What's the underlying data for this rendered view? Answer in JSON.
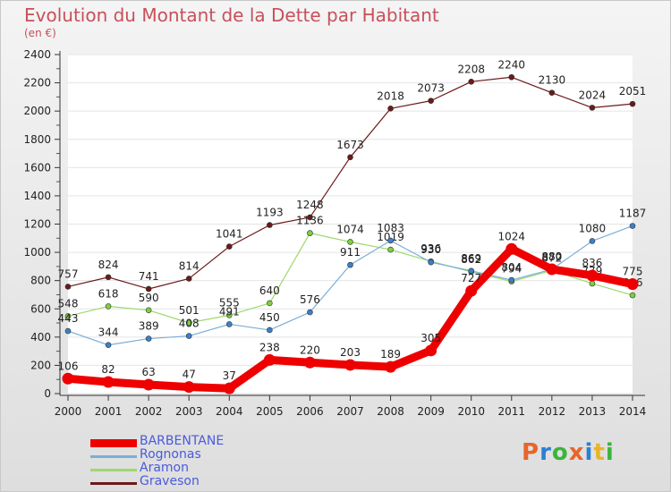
{
  "title": "Evolution du Montant de la Dette par Habitant",
  "subtitle": "(en €)",
  "logo": {
    "text": "Proxiti",
    "colors": [
      "#e8652a",
      "#2a7fd6",
      "#3ab53a",
      "#e8652a",
      "#2a7fd6",
      "#e8b52a",
      "#3ab53a"
    ]
  },
  "chart_data": {
    "type": "line",
    "x": [
      "2000",
      "2001",
      "2002",
      "2003",
      "2004",
      "2005",
      "2006",
      "2007",
      "2008",
      "2009",
      "2010",
      "2011",
      "2012",
      "2013",
      "2014"
    ],
    "ylim": [
      0,
      2400
    ],
    "yticks": [
      0,
      200,
      400,
      600,
      800,
      1000,
      1200,
      1400,
      1600,
      1800,
      2000,
      2200,
      2400
    ],
    "grid": "horizontal",
    "legend_position": "bottom-left",
    "series": [
      {
        "name": "Graveson",
        "color": "#6b1a1a",
        "marker": "#6b1a1a",
        "width": 1.2,
        "values": [
          757,
          824,
          741,
          814,
          1041,
          1193,
          1248,
          1673,
          2018,
          2073,
          2208,
          2240,
          2130,
          2024,
          2051
        ],
        "labels": [
          "757",
          "824",
          "741",
          "814",
          "1041",
          "1193",
          "1248",
          "1673",
          "2018",
          "2073",
          "2208",
          "2240",
          "2130",
          "2024",
          "2051"
        ]
      },
      {
        "name": "Aramon",
        "color": "#9ed870",
        "marker": "#7cd03c",
        "width": 1.2,
        "values": [
          548,
          618,
          590,
          501,
          555,
          640,
          1136,
          1074,
          1019,
          936,
          862,
          794,
          872,
          779,
          696
        ],
        "labels": [
          "548",
          "618",
          "590",
          "501",
          "555",
          "640",
          "1136",
          "1074",
          "1019",
          "936",
          "862",
          "794",
          "872",
          "779",
          "696"
        ]
      },
      {
        "name": "Rognonas",
        "color": "#7aaed6",
        "marker": "#3a80cc",
        "width": 1.2,
        "values": [
          443,
          344,
          389,
          408,
          491,
          450,
          576,
          911,
          1083,
          930,
          869,
          804,
          880,
          1080,
          1187
        ],
        "labels": [
          "443",
          "344",
          "389",
          "408",
          "491",
          "450",
          "576",
          "911",
          "1083",
          "930",
          "869",
          "804",
          "880",
          "1080",
          "1187"
        ]
      },
      {
        "name": "BARBENTANE",
        "color": "#ee0000",
        "marker": "#ee0000",
        "width": 9,
        "values": [
          106,
          82,
          63,
          47,
          37,
          238,
          220,
          203,
          189,
          305,
          727,
          1024,
          880,
          836,
          775
        ],
        "labels": [
          "106",
          "82",
          "63",
          "47",
          "37",
          "238",
          "220",
          "203",
          "189",
          "305",
          "727",
          "1024",
          "880",
          "836",
          "775"
        ]
      }
    ]
  }
}
